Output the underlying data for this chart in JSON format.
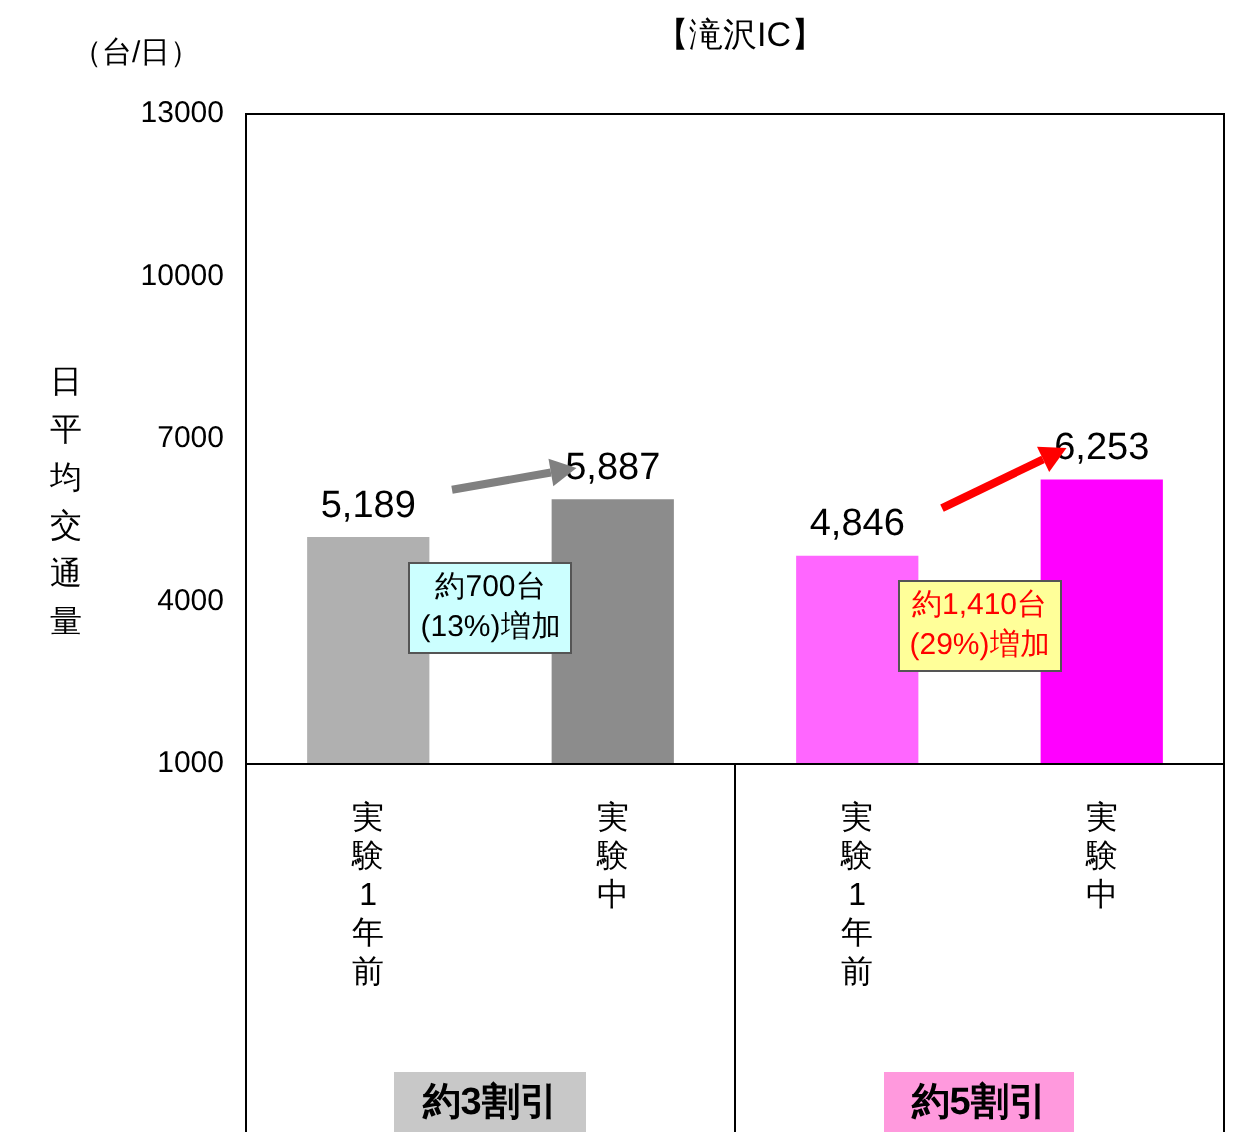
{
  "chart_data": {
    "type": "bar",
    "title": "【滝沢IC】",
    "ylabel": "日平均交通量",
    "categories": [
      "実験1年前",
      "実験中",
      "実験1年前",
      "実験中"
    ],
    "values": [
      5189,
      5887,
      4846,
      6253
    ],
    "colors": [
      "#b0b0b0",
      "#8c8c8c",
      "#ff66ff",
      "#ff00ff"
    ],
    "value_labels": [
      "5,189",
      "5,887",
      "4,846",
      "6,253"
    ],
    "ylim": [
      1000,
      13000
    ],
    "yticks": [
      1000,
      4000,
      7000,
      10000,
      13000
    ],
    "annotations": [
      "（台/日）",
      "約700台(13%)増加",
      "約1,410台(29%)増加",
      "約3割引",
      "約5割引"
    ]
  }
}
